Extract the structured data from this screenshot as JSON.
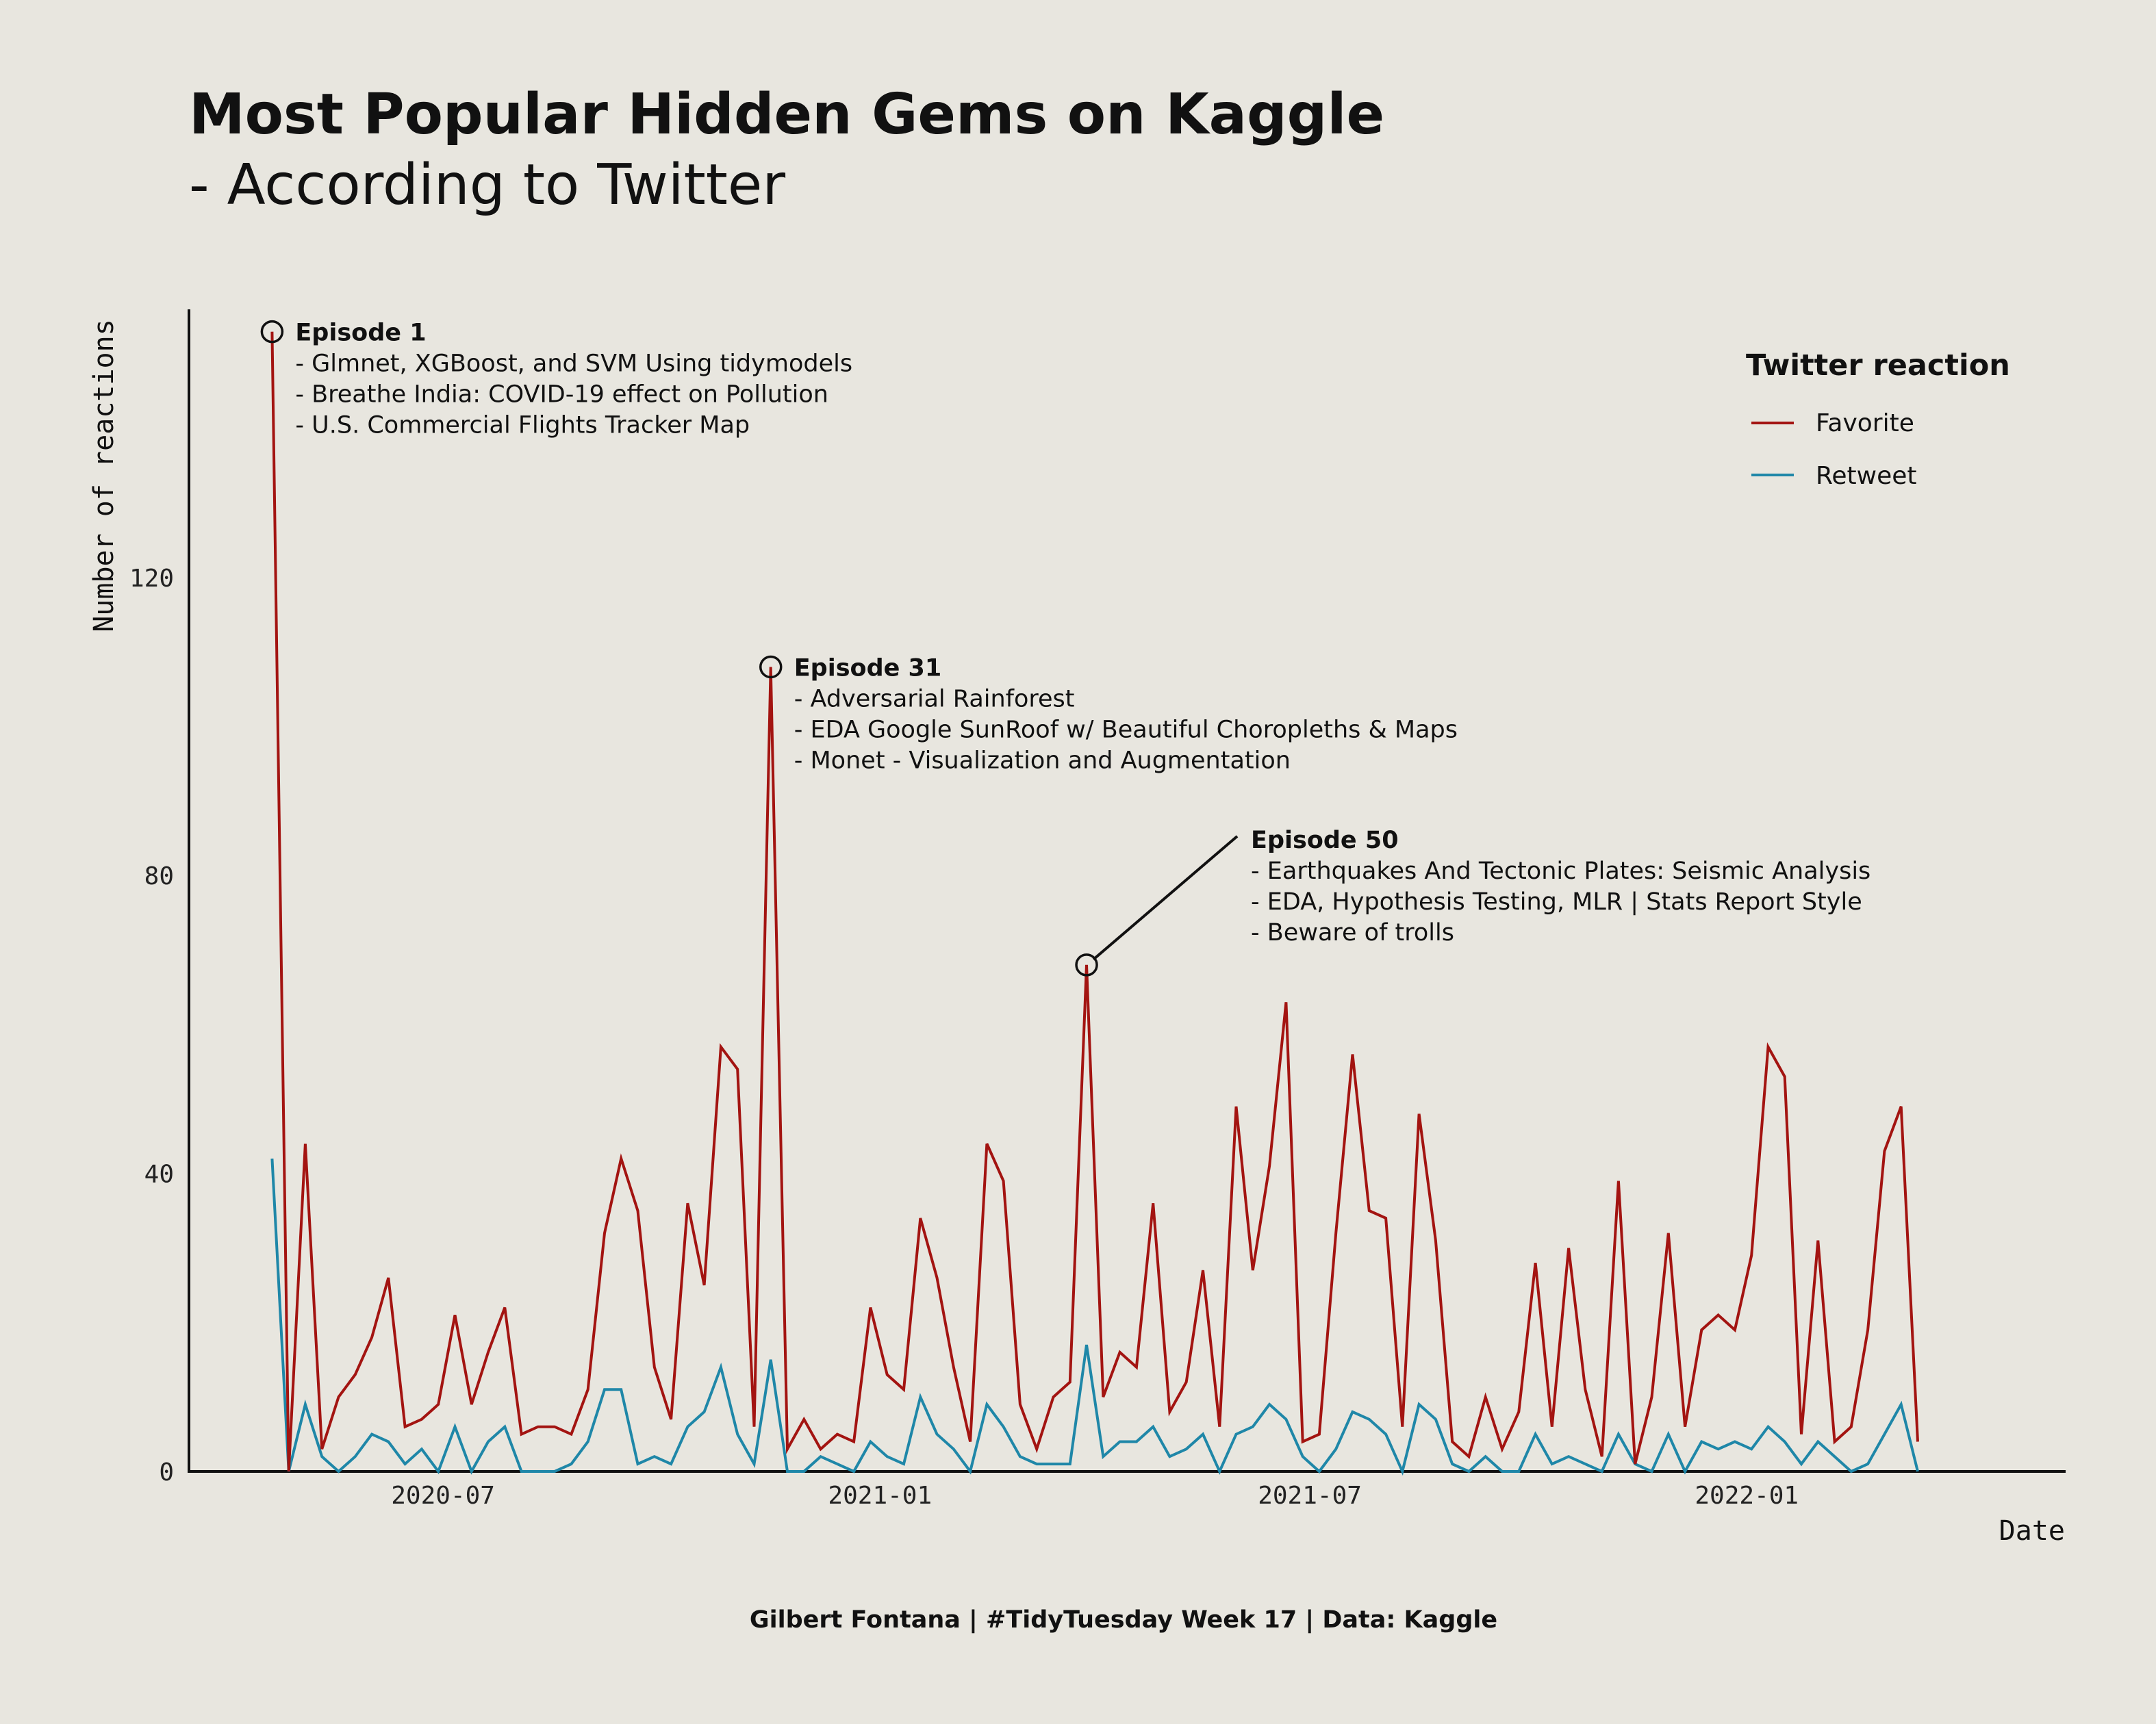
{
  "chart_data": {
    "type": "line",
    "title": "Most Popular Hidden Gems on Kaggle",
    "subtitle": "- According to Twitter",
    "xlabel": "Date",
    "ylabel": "Number of reactions",
    "caption": "Gilbert Fontana | #TidyTuesday Week 17 | Data: Kaggle",
    "x_ticks": [
      "2020-07",
      "2021-01",
      "2021-07",
      "2022-01"
    ],
    "y_ticks": [
      0,
      40,
      80,
      120
    ],
    "ylim": [
      0,
      156
    ],
    "xlim": [
      "2020-03-16",
      "2022-05-15"
    ],
    "grid": false,
    "legend": {
      "title": "Twitter reaction",
      "position": "top-right"
    },
    "series": [
      {
        "name": "Favorite",
        "color": "#a31411",
        "points": [
          [
            "2020-04-20",
            153
          ],
          [
            "2020-04-27",
            0
          ],
          [
            "2020-05-04",
            44
          ],
          [
            "2020-05-11",
            3
          ],
          [
            "2020-05-18",
            10
          ],
          [
            "2020-05-25",
            13
          ],
          [
            "2020-06-01",
            18
          ],
          [
            "2020-06-08",
            26
          ],
          [
            "2020-06-15",
            6
          ],
          [
            "2020-06-22",
            7
          ],
          [
            "2020-06-29",
            9
          ],
          [
            "2020-07-06",
            21
          ],
          [
            "2020-07-13",
            9
          ],
          [
            "2020-07-20",
            16
          ],
          [
            "2020-07-27",
            22
          ],
          [
            "2020-08-03",
            5
          ],
          [
            "2020-08-10",
            6
          ],
          [
            "2020-08-17",
            6
          ],
          [
            "2020-08-24",
            5
          ],
          [
            "2020-08-31",
            11
          ],
          [
            "2020-09-07",
            32
          ],
          [
            "2020-09-14",
            42
          ],
          [
            "2020-09-21",
            35
          ],
          [
            "2020-09-28",
            14
          ],
          [
            "2020-10-05",
            7
          ],
          [
            "2020-10-12",
            36
          ],
          [
            "2020-10-19",
            25
          ],
          [
            "2020-10-26",
            57
          ],
          [
            "2020-11-02",
            54
          ],
          [
            "2020-11-09",
            6
          ],
          [
            "2020-11-16",
            108
          ],
          [
            "2020-11-23",
            3
          ],
          [
            "2020-11-30",
            7
          ],
          [
            "2020-12-07",
            3
          ],
          [
            "2020-12-14",
            5
          ],
          [
            "2020-12-21",
            4
          ],
          [
            "2020-12-28",
            22
          ],
          [
            "2021-01-04",
            13
          ],
          [
            "2021-01-11",
            11
          ],
          [
            "2021-01-18",
            34
          ],
          [
            "2021-01-25",
            26
          ],
          [
            "2021-02-01",
            14
          ],
          [
            "2021-02-08",
            4
          ],
          [
            "2021-02-15",
            44
          ],
          [
            "2021-02-22",
            39
          ],
          [
            "2021-03-01",
            9
          ],
          [
            "2021-03-08",
            3
          ],
          [
            "2021-03-15",
            10
          ],
          [
            "2021-03-22",
            12
          ],
          [
            "2021-03-29",
            68
          ],
          [
            "2021-04-05",
            10
          ],
          [
            "2021-04-12",
            16
          ],
          [
            "2021-04-19",
            14
          ],
          [
            "2021-04-26",
            36
          ],
          [
            "2021-05-03",
            8
          ],
          [
            "2021-05-10",
            12
          ],
          [
            "2021-05-17",
            27
          ],
          [
            "2021-05-24",
            6
          ],
          [
            "2021-05-31",
            49
          ],
          [
            "2021-06-07",
            27
          ],
          [
            "2021-06-14",
            41
          ],
          [
            "2021-06-21",
            63
          ],
          [
            "2021-06-28",
            4
          ],
          [
            "2021-07-05",
            5
          ],
          [
            "2021-07-12",
            32
          ],
          [
            "2021-07-19",
            56
          ],
          [
            "2021-07-26",
            35
          ],
          [
            "2021-08-02",
            34
          ],
          [
            "2021-08-09",
            6
          ],
          [
            "2021-08-16",
            48
          ],
          [
            "2021-08-23",
            31
          ],
          [
            "2021-08-30",
            4
          ],
          [
            "2021-09-06",
            2
          ],
          [
            "2021-09-13",
            10
          ],
          [
            "2021-09-20",
            3
          ],
          [
            "2021-09-27",
            8
          ],
          [
            "2021-10-04",
            28
          ],
          [
            "2021-10-11",
            6
          ],
          [
            "2021-10-18",
            30
          ],
          [
            "2021-10-25",
            11
          ],
          [
            "2021-11-01",
            2
          ],
          [
            "2021-11-08",
            39
          ],
          [
            "2021-11-15",
            1
          ],
          [
            "2021-11-22",
            10
          ],
          [
            "2021-11-29",
            32
          ],
          [
            "2021-12-06",
            6
          ],
          [
            "2021-12-13",
            19
          ],
          [
            "2021-12-20",
            21
          ],
          [
            "2021-12-27",
            19
          ],
          [
            "2022-01-03",
            29
          ],
          [
            "2022-01-10",
            57
          ],
          [
            "2022-01-17",
            53
          ],
          [
            "2022-01-24",
            5
          ],
          [
            "2022-01-31",
            31
          ],
          [
            "2022-02-07",
            4
          ],
          [
            "2022-02-14",
            6
          ],
          [
            "2022-02-21",
            19
          ],
          [
            "2022-02-28",
            43
          ],
          [
            "2022-03-07",
            49
          ],
          [
            "2022-03-14",
            4
          ]
        ]
      },
      {
        "name": "Retweet",
        "color": "#1f87a8",
        "points": [
          [
            "2020-04-20",
            42
          ],
          [
            "2020-04-27",
            0
          ],
          [
            "2020-05-04",
            9
          ],
          [
            "2020-05-11",
            2
          ],
          [
            "2020-05-18",
            0
          ],
          [
            "2020-05-25",
            2
          ],
          [
            "2020-06-01",
            5
          ],
          [
            "2020-06-08",
            4
          ],
          [
            "2020-06-15",
            1
          ],
          [
            "2020-06-22",
            3
          ],
          [
            "2020-06-29",
            0
          ],
          [
            "2020-07-06",
            6
          ],
          [
            "2020-07-13",
            0
          ],
          [
            "2020-07-20",
            4
          ],
          [
            "2020-07-27",
            6
          ],
          [
            "2020-08-03",
            0
          ],
          [
            "2020-08-10",
            0
          ],
          [
            "2020-08-17",
            0
          ],
          [
            "2020-08-24",
            1
          ],
          [
            "2020-08-31",
            4
          ],
          [
            "2020-09-07",
            11
          ],
          [
            "2020-09-14",
            11
          ],
          [
            "2020-09-21",
            1
          ],
          [
            "2020-09-28",
            2
          ],
          [
            "2020-10-05",
            1
          ],
          [
            "2020-10-12",
            6
          ],
          [
            "2020-10-19",
            8
          ],
          [
            "2020-10-26",
            14
          ],
          [
            "2020-11-02",
            5
          ],
          [
            "2020-11-09",
            1
          ],
          [
            "2020-11-16",
            15
          ],
          [
            "2020-11-23",
            0
          ],
          [
            "2020-11-30",
            0
          ],
          [
            "2020-12-07",
            2
          ],
          [
            "2020-12-14",
            1
          ],
          [
            "2020-12-21",
            0
          ],
          [
            "2020-12-28",
            4
          ],
          [
            "2021-01-04",
            2
          ],
          [
            "2021-01-11",
            1
          ],
          [
            "2021-01-18",
            10
          ],
          [
            "2021-01-25",
            5
          ],
          [
            "2021-02-01",
            3
          ],
          [
            "2021-02-08",
            0
          ],
          [
            "2021-02-15",
            9
          ],
          [
            "2021-02-22",
            6
          ],
          [
            "2021-03-01",
            2
          ],
          [
            "2021-03-08",
            1
          ],
          [
            "2021-03-15",
            1
          ],
          [
            "2021-03-22",
            1
          ],
          [
            "2021-03-29",
            17
          ],
          [
            "2021-04-05",
            2
          ],
          [
            "2021-04-12",
            4
          ],
          [
            "2021-04-19",
            4
          ],
          [
            "2021-04-26",
            6
          ],
          [
            "2021-05-03",
            2
          ],
          [
            "2021-05-10",
            3
          ],
          [
            "2021-05-17",
            5
          ],
          [
            "2021-05-24",
            0
          ],
          [
            "2021-05-31",
            5
          ],
          [
            "2021-06-07",
            6
          ],
          [
            "2021-06-14",
            9
          ],
          [
            "2021-06-21",
            7
          ],
          [
            "2021-06-28",
            2
          ],
          [
            "2021-07-05",
            0
          ],
          [
            "2021-07-12",
            3
          ],
          [
            "2021-07-19",
            8
          ],
          [
            "2021-07-26",
            7
          ],
          [
            "2021-08-02",
            5
          ],
          [
            "2021-08-09",
            0
          ],
          [
            "2021-08-16",
            9
          ],
          [
            "2021-08-23",
            7
          ],
          [
            "2021-08-30",
            1
          ],
          [
            "2021-09-06",
            0
          ],
          [
            "2021-09-13",
            2
          ],
          [
            "2021-09-20",
            0
          ],
          [
            "2021-09-27",
            0
          ],
          [
            "2021-10-04",
            5
          ],
          [
            "2021-10-11",
            1
          ],
          [
            "2021-10-18",
            2
          ],
          [
            "2021-10-25",
            1
          ],
          [
            "2021-11-01",
            0
          ],
          [
            "2021-11-08",
            5
          ],
          [
            "2021-11-15",
            1
          ],
          [
            "2021-11-22",
            0
          ],
          [
            "2021-11-29",
            5
          ],
          [
            "2021-12-06",
            0
          ],
          [
            "2021-12-13",
            4
          ],
          [
            "2021-12-20",
            3
          ],
          [
            "2021-12-27",
            4
          ],
          [
            "2022-01-03",
            3
          ],
          [
            "2022-01-10",
            6
          ],
          [
            "2022-01-17",
            4
          ],
          [
            "2022-01-24",
            1
          ],
          [
            "2022-01-31",
            4
          ],
          [
            "2022-02-07",
            2
          ],
          [
            "2022-02-14",
            0
          ],
          [
            "2022-02-21",
            1
          ],
          [
            "2022-02-28",
            5
          ],
          [
            "2022-03-07",
            9
          ],
          [
            "2022-03-14",
            0
          ]
        ]
      }
    ],
    "annotations": [
      {
        "date": "2020-04-20",
        "value": 153,
        "heading": "Episode 1",
        "lines": [
          "- Glmnet, XGBoost, and SVM Using tidymodels",
          "- Breathe India: COVID-19 effect on Pollution",
          "- U.S. Commercial Flights Tracker Map"
        ]
      },
      {
        "date": "2020-11-16",
        "value": 108,
        "heading": "Episode 31",
        "lines": [
          "- Adversarial Rainforest",
          "- EDA Google SunRoof w/ Beautiful Choropleths & Maps",
          "- Monet - Visualization and Augmentation"
        ]
      },
      {
        "date": "2021-03-29",
        "value": 68,
        "heading": "Episode 50",
        "lines": [
          "- Earthquakes And Tectonic Plates: Seismic Analysis",
          "- EDA, Hypothesis Testing, MLR | Stats Report Style",
          "- Beware of trolls"
        ]
      }
    ]
  }
}
